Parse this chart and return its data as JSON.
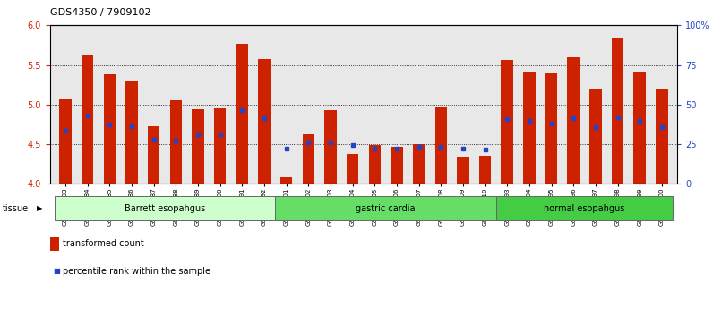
{
  "title": "GDS4350 / 7909102",
  "samples": [
    "GSM851983",
    "GSM851984",
    "GSM851985",
    "GSM851986",
    "GSM851987",
    "GSM851988",
    "GSM851989",
    "GSM851990",
    "GSM851991",
    "GSM851992",
    "GSM852001",
    "GSM852002",
    "GSM852003",
    "GSM852004",
    "GSM852005",
    "GSM852006",
    "GSM852007",
    "GSM852008",
    "GSM852009",
    "GSM852010",
    "GSM851993",
    "GSM851994",
    "GSM851995",
    "GSM851996",
    "GSM851997",
    "GSM851998",
    "GSM851999",
    "GSM852000"
  ],
  "bar_values": [
    5.07,
    5.63,
    5.38,
    5.3,
    4.73,
    5.06,
    4.94,
    4.95,
    5.77,
    5.57,
    4.08,
    4.63,
    4.93,
    4.38,
    4.49,
    4.47,
    4.5,
    4.97,
    4.34,
    4.35,
    5.56,
    5.42,
    5.4,
    5.6,
    5.2,
    5.84,
    5.42,
    5.2
  ],
  "blue_values": [
    4.67,
    4.86,
    4.75,
    4.73,
    4.56,
    4.55,
    4.62,
    4.62,
    4.93,
    4.83,
    4.44,
    4.52,
    4.52,
    4.49,
    4.44,
    4.44,
    4.47,
    4.47,
    4.44,
    4.43,
    4.82,
    4.79,
    4.76,
    4.83,
    4.72,
    4.84,
    4.79,
    4.72
  ],
  "groups": [
    {
      "label": "Barrett esopahgus",
      "start": 0,
      "end": 10,
      "color": "#ccffcc"
    },
    {
      "label": "gastric cardia",
      "start": 10,
      "end": 20,
      "color": "#66dd66"
    },
    {
      "label": "normal esopahgus",
      "start": 20,
      "end": 28,
      "color": "#44cc44"
    }
  ],
  "ylim_left": [
    4.0,
    6.0
  ],
  "yticks_left": [
    4.0,
    4.5,
    5.0,
    5.5,
    6.0
  ],
  "yticks_right": [
    0,
    25,
    50,
    75,
    100
  ],
  "bar_color": "#cc2200",
  "blue_color": "#2244cc",
  "bar_width": 0.55,
  "background_color": "#ffffff",
  "plot_bg": "#e8e8e8"
}
